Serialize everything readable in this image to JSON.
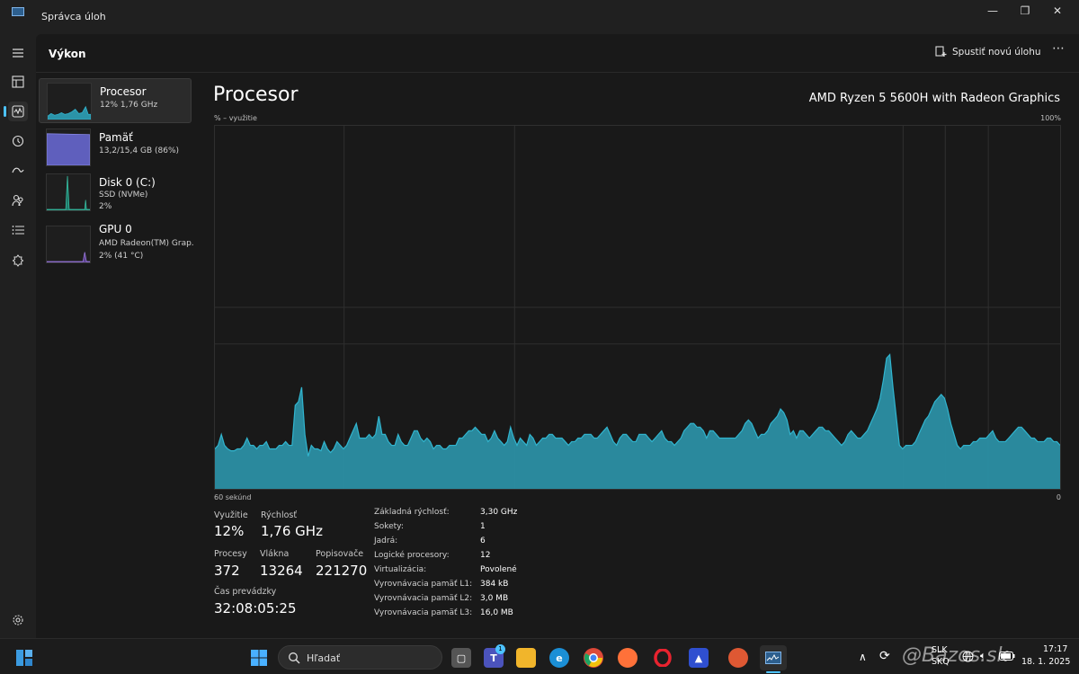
{
  "window": {
    "title": "Správca úloh"
  },
  "header": {
    "title": "Výkon",
    "new_task_label": "Spustiť novú úlohu",
    "more": "⋯"
  },
  "sidebar": {
    "items": [
      {
        "name": "Procesor",
        "sub1": "12%  1,76 GHz",
        "sub2": ""
      },
      {
        "name": "Pamäť",
        "sub1": "13,2/15,4 GB (86%)",
        "sub2": ""
      },
      {
        "name": "Disk 0 (C:)",
        "sub1": "SSD (NVMe)",
        "sub2": "2%"
      },
      {
        "name": "GPU 0",
        "sub1": "AMD Radeon(TM) Grap.",
        "sub2": "2% (41 °C)"
      }
    ]
  },
  "cpu": {
    "title": "Procesor",
    "model": "AMD Ryzen 5 5600H with Radeon Graphics",
    "graph_label": "% – využitie",
    "graph_max": "100%",
    "graph_time": "60 sekúnd",
    "graph_min": "0",
    "stats": {
      "util_label": "Využitie",
      "util_value": "12%",
      "speed_label": "Rýchlosť",
      "speed_value": "1,76 GHz",
      "proc_label": "Procesy",
      "proc_value": "372",
      "thr_label": "Vlákna",
      "thr_value": "13264",
      "hnd_label": "Popisovače",
      "hnd_value": "221270",
      "uptime_label": "Čas prevádzky",
      "uptime_value": "32:08:05:25"
    },
    "details": [
      {
        "label": "Základná rýchlosť:",
        "value": "3,30 GHz"
      },
      {
        "label": "Sokety:",
        "value": "1"
      },
      {
        "label": "Jadrá:",
        "value": "6"
      },
      {
        "label": "Logické procesory:",
        "value": "12"
      },
      {
        "label": "Virtualizácia:",
        "value": "Povolené"
      },
      {
        "label": "Vyrovnávacia pamäť L1:",
        "value": "384 kB"
      },
      {
        "label": "Vyrovnávacia pamäť L2:",
        "value": "3,0 MB"
      },
      {
        "label": "Vyrovnávacia pamäť L3:",
        "value": "16,0 MB"
      }
    ]
  },
  "chart_data": {
    "type": "area",
    "x_label": "60 sekúnd",
    "ylim": [
      0,
      100
    ],
    "values": [
      11,
      12,
      15,
      12,
      11,
      10.5,
      10.5,
      11,
      11,
      12,
      14,
      12,
      12,
      11,
      12,
      12,
      13,
      11,
      11,
      11,
      12,
      12,
      13,
      12,
      12,
      23,
      24,
      28,
      15,
      9,
      12,
      11,
      11,
      10.5,
      13,
      11,
      10,
      11,
      13,
      12,
      11,
      12,
      14,
      16,
      18,
      14,
      14,
      14,
      15,
      14,
      15,
      20,
      15,
      15,
      13,
      12,
      12,
      15,
      13,
      12,
      12,
      14,
      16,
      16,
      14,
      13,
      14,
      13,
      11,
      12,
      12,
      11,
      11,
      12,
      12,
      12,
      14,
      14,
      15,
      16,
      16,
      17,
      16,
      15,
      15,
      13,
      14,
      16,
      14,
      13,
      12,
      13,
      17,
      14,
      12,
      14,
      13,
      12,
      15,
      14,
      12,
      13,
      14,
      14,
      15,
      15,
      14,
      14,
      14,
      13,
      12,
      13,
      13,
      14,
      14,
      15,
      15,
      15,
      14,
      14,
      15,
      16,
      17,
      15,
      13,
      12,
      14,
      15,
      15,
      14,
      13,
      13,
      15,
      15,
      15,
      14,
      13,
      14,
      15,
      16,
      14,
      13,
      13,
      12,
      13,
      14,
      16,
      17,
      18,
      18,
      17,
      17,
      16,
      14,
      16,
      16,
      15,
      14,
      14,
      14,
      14,
      14,
      14,
      15,
      16,
      18,
      19,
      18,
      16,
      14,
      15,
      15,
      16,
      18,
      19,
      20,
      22,
      21,
      19,
      15,
      16,
      14,
      16,
      16,
      15,
      14,
      15,
      16,
      17,
      17,
      16,
      16,
      15,
      14,
      13,
      12,
      13,
      15,
      16,
      15,
      14,
      14,
      15,
      16,
      18,
      20,
      22,
      25,
      30,
      36,
      37,
      28,
      20,
      12,
      11,
      12,
      12,
      12,
      13,
      15,
      17,
      19,
      20,
      22,
      24,
      25,
      26,
      25,
      22,
      18,
      15,
      12,
      11,
      12,
      12,
      12,
      13,
      13,
      14,
      14,
      14,
      15,
      16,
      14,
      13,
      13,
      13,
      14,
      15,
      16,
      17,
      17,
      16,
      15,
      14,
      14,
      13,
      13,
      13,
      14,
      14,
      13,
      13,
      12
    ]
  },
  "taskbar": {
    "search_label": "Hľadať",
    "lang": "SLK",
    "layout": "SKQ",
    "time": "17:17",
    "date": "18. 1. 2025",
    "watermark": "@Bazos.sk",
    "badge": "1"
  },
  "colors": {
    "accent": "#4cc2ff",
    "cpu_fill": "#2b93a8",
    "cpu_line": "#31b5cf",
    "mem": "#7a7adc"
  }
}
